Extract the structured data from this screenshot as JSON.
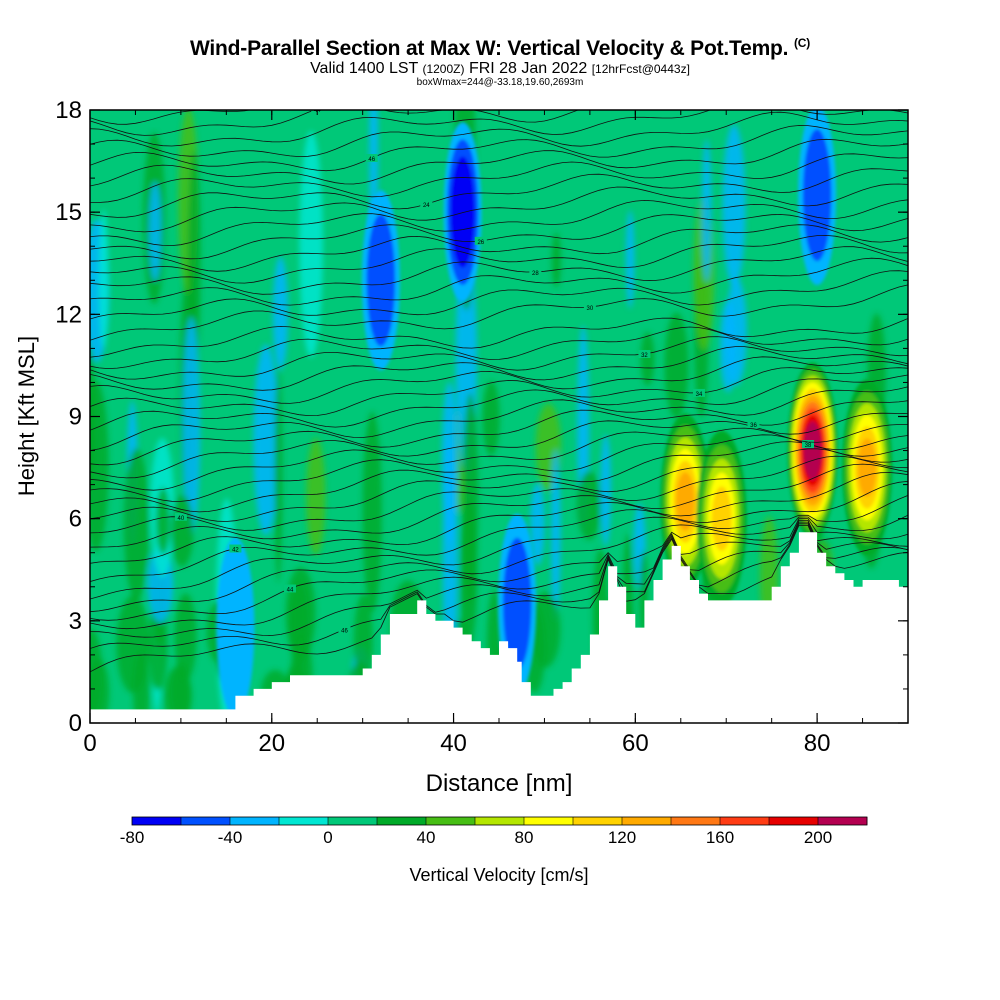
{
  "header": {
    "title": "Wind-Parallel Section at Max W: Vertical Velocity & Pot.Temp.",
    "title_suffix": "(C)",
    "valid_main": "Valid 1400 LST",
    "valid_utc": "(1200Z)",
    "valid_date": "FRI 28 Jan 2022",
    "valid_fcst": "[12hrFcst@0443z]",
    "box_info": "boxWmax=244@-33.18,19.60,2693m"
  },
  "chart_data": {
    "type": "heatmap",
    "xlabel": "Distance [nm]",
    "ylabel": "Height [Kft MSL]",
    "xlim": [
      0,
      90
    ],
    "ylim": [
      0,
      18
    ],
    "xticks": [
      "0",
      "20",
      "40",
      "60",
      "80"
    ],
    "yticks": [
      "0",
      "3",
      "6",
      "9",
      "12",
      "15",
      "18"
    ],
    "colorbar": {
      "label": "Vertical Velocity [cm/s]",
      "tick_labels": [
        "-80",
        "-40",
        "0",
        "40",
        "80",
        "120",
        "160",
        "200"
      ],
      "levels": [
        -80,
        -60,
        -40,
        -20,
        0,
        20,
        40,
        60,
        80,
        100,
        120,
        140,
        160,
        180,
        200,
        220
      ],
      "colors": [
        "#0000f5",
        "#0050ff",
        "#00b4ff",
        "#00e6d2",
        "#00c878",
        "#00aa28",
        "#46be14",
        "#b4e600",
        "#ffff00",
        "#ffd200",
        "#ffaa00",
        "#ff7814",
        "#ff3c14",
        "#e60000",
        "#b40050"
      ]
    },
    "terrain_profile": {
      "x": [
        0,
        8,
        14,
        16,
        18,
        20,
        22,
        26,
        30,
        31,
        32,
        33,
        36,
        37,
        38,
        39,
        40,
        41,
        42,
        43,
        44,
        45,
        46,
        47,
        47.5,
        48.5,
        49.5,
        51,
        52,
        53,
        54,
        55,
        56,
        57,
        58,
        59,
        60,
        61,
        62,
        63,
        64,
        65,
        66,
        67,
        68,
        69,
        70,
        71,
        72,
        73,
        74,
        75,
        76,
        77,
        78,
        79,
        80,
        81,
        82,
        83,
        84,
        85,
        86,
        87,
        88,
        89,
        90
      ],
      "y": [
        0.4,
        0.4,
        0.4,
        0.8,
        1.0,
        1.2,
        1.4,
        1.4,
        1.6,
        2.0,
        2.6,
        3.2,
        3.6,
        3.2,
        3.0,
        3.0,
        2.8,
        2.6,
        2.4,
        2.2,
        2.0,
        2.4,
        2.2,
        1.8,
        1.2,
        0.8,
        0.8,
        1.0,
        1.2,
        1.6,
        2.0,
        2.6,
        3.6,
        4.6,
        4.0,
        3.2,
        2.8,
        3.6,
        4.2,
        4.8,
        5.2,
        4.6,
        4.2,
        3.8,
        3.6,
        3.6,
        3.6,
        3.6,
        3.6,
        3.6,
        3.6,
        4.0,
        4.6,
        5.0,
        5.6,
        5.6,
        5.0,
        4.6,
        4.4,
        4.2,
        4.0,
        4.2,
        4.2,
        4.2,
        4.2,
        4.0,
        3.6
      ]
    },
    "updraft_cores": [
      {
        "x": 65.5,
        "y": 6.5,
        "max_cm_s": 130
      },
      {
        "x": 69.5,
        "y": 6.0,
        "max_cm_s": 110
      },
      {
        "x": 79.5,
        "y": 8.0,
        "max_cm_s": 244
      },
      {
        "x": 85.5,
        "y": 7.5,
        "max_cm_s": 130
      }
    ],
    "downdraft_cores": [
      {
        "x": 41,
        "y": 15,
        "min_cm_s": -80
      },
      {
        "x": 32,
        "y": 13,
        "min_cm_s": -45
      },
      {
        "x": 80,
        "y": 15.5,
        "min_cm_s": -60
      },
      {
        "x": 47,
        "y": 3.5,
        "min_cm_s": -60
      },
      {
        "x": 16,
        "y": 2.8,
        "min_cm_s": -40
      }
    ],
    "theta_contour_labels": [
      "46",
      "44",
      "42",
      "40",
      "38",
      "36",
      "34",
      "32",
      "30",
      "28",
      "26",
      "24"
    ]
  }
}
